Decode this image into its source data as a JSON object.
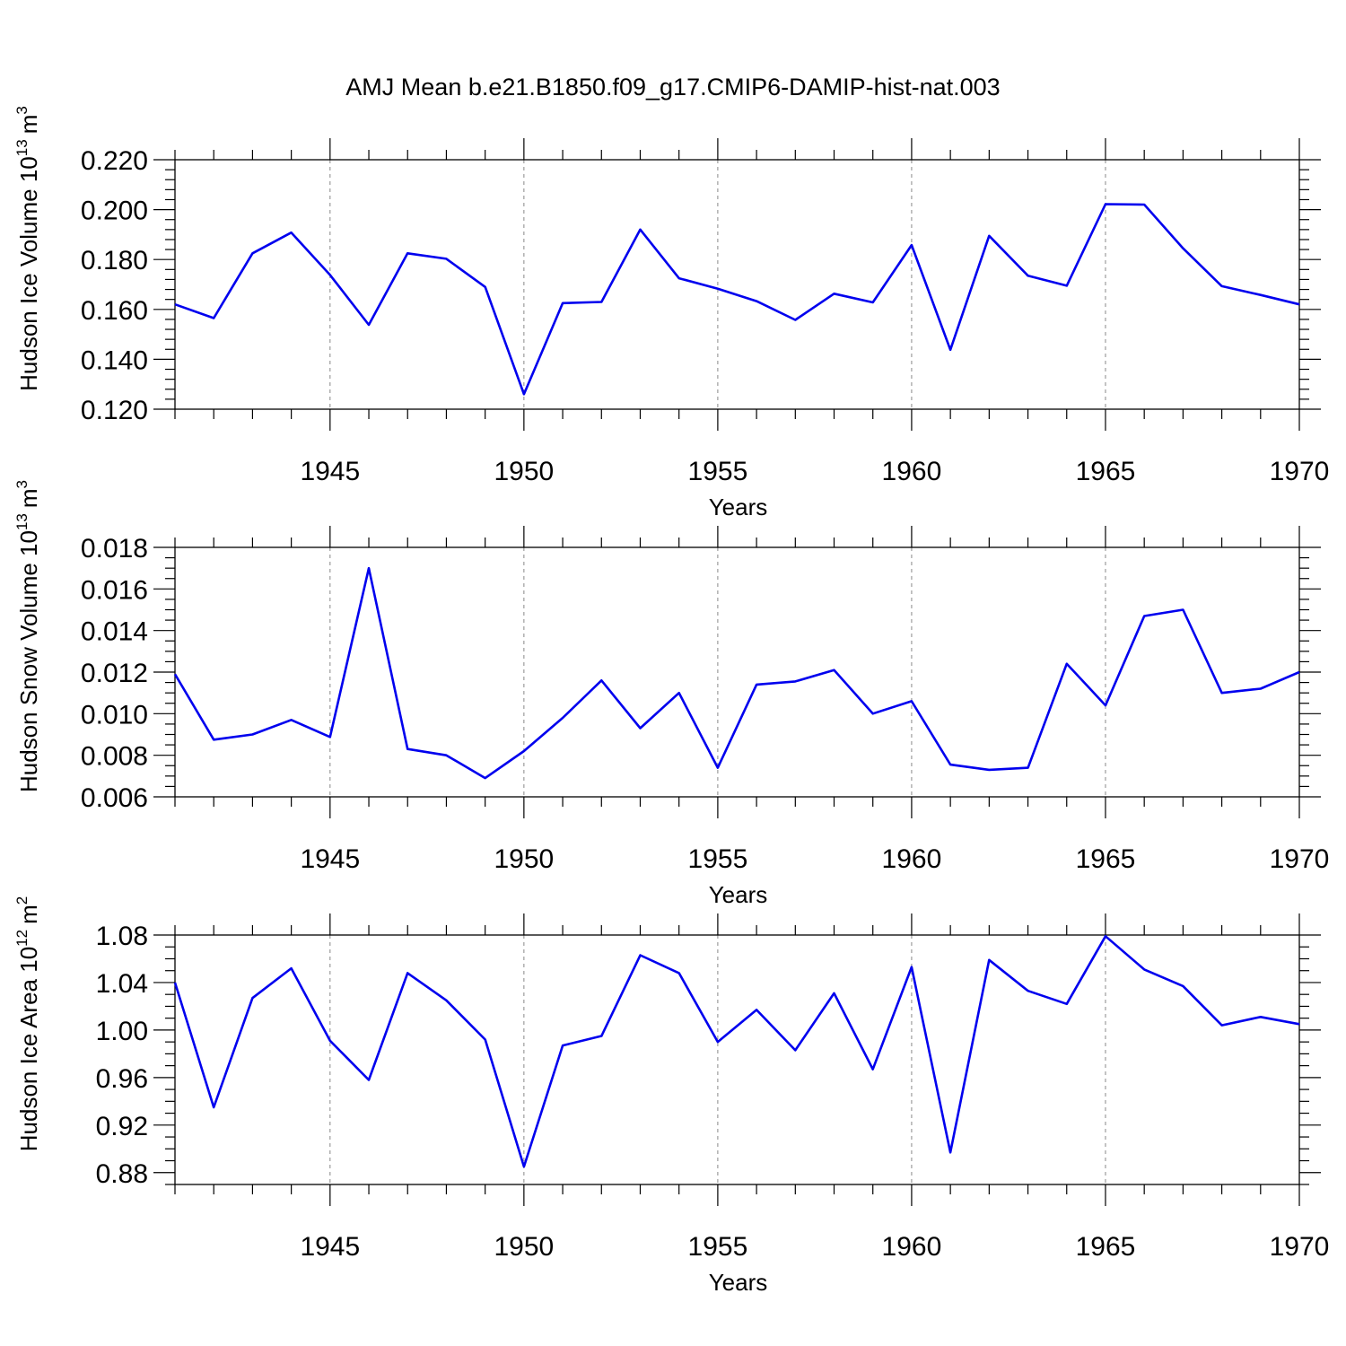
{
  "title": "AMJ Mean b.e21.B1850.f09_g17.CMIP6-DAMIP-hist-nat.003",
  "line_color": "#0000ee",
  "chart_data": [
    {
      "type": "line",
      "ylabel": "Hudson Ice Volume 10",
      "ylabel_sup": "13",
      "ylabel_unit": "m",
      "ylabel_unit_sup": "3",
      "xlabel": "Years",
      "xlim": [
        1941,
        1970
      ],
      "ylim": [
        0.12,
        0.22
      ],
      "yticks": [
        "0.120",
        "0.140",
        "0.160",
        "0.180",
        "0.200",
        "0.220"
      ],
      "xticks": [
        "1945",
        "1950",
        "1955",
        "1960",
        "1965",
        "1970"
      ],
      "grid": "vertical dashed at 5-year ticks",
      "x": [
        1941,
        1942,
        1943,
        1944,
        1945,
        1946,
        1947,
        1948,
        1949,
        1950,
        1951,
        1952,
        1953,
        1954,
        1955,
        1956,
        1957,
        1958,
        1959,
        1960,
        1961,
        1962,
        1963,
        1964,
        1965,
        1966,
        1967,
        1968,
        1969,
        1970
      ],
      "values": [
        0.162,
        0.1565,
        0.1825,
        0.1908,
        0.1738,
        0.1538,
        0.1825,
        0.1803,
        0.169,
        0.126,
        0.1625,
        0.163,
        0.192,
        0.1725,
        0.1683,
        0.1633,
        0.1558,
        0.1663,
        0.1628,
        0.1858,
        0.1438,
        0.1895,
        0.1735,
        0.1695,
        0.2022,
        0.202,
        0.1845,
        0.1693,
        0.1658,
        0.162
      ]
    },
    {
      "type": "line",
      "ylabel": "Hudson Snow Volume 10",
      "ylabel_sup": "13",
      "ylabel_unit": "m",
      "ylabel_unit_sup": "3",
      "xlabel": "Years",
      "xlim": [
        1941,
        1970
      ],
      "ylim": [
        0.006,
        0.018
      ],
      "yticks": [
        "0.006",
        "0.008",
        "0.010",
        "0.012",
        "0.014",
        "0.016",
        "0.018"
      ],
      "xticks": [
        "1945",
        "1950",
        "1955",
        "1960",
        "1965",
        "1970"
      ],
      "grid": "vertical dashed at 5-year ticks",
      "x": [
        1941,
        1942,
        1943,
        1944,
        1945,
        1946,
        1947,
        1948,
        1949,
        1950,
        1951,
        1952,
        1953,
        1954,
        1955,
        1956,
        1957,
        1958,
        1959,
        1960,
        1961,
        1962,
        1963,
        1964,
        1965,
        1966,
        1967,
        1968,
        1969,
        1970
      ],
      "values": [
        0.0119,
        0.00875,
        0.009,
        0.0097,
        0.00888,
        0.017,
        0.0083,
        0.008,
        0.0069,
        0.0082,
        0.0098,
        0.0116,
        0.0093,
        0.011,
        0.0074,
        0.0114,
        0.01155,
        0.0121,
        0.01,
        0.0106,
        0.00755,
        0.0073,
        0.0074,
        0.0124,
        0.0104,
        0.0147,
        0.015,
        0.011,
        0.0112,
        0.012
      ]
    },
    {
      "type": "line",
      "ylabel": "Hudson Ice Area 10",
      "ylabel_sup": "12",
      "ylabel_unit": "m",
      "ylabel_unit_sup": "2",
      "xlabel": "Years",
      "xlim": [
        1941,
        1970
      ],
      "ylim": [
        0.87,
        1.08
      ],
      "yticks": [
        "0.88",
        "0.92",
        "0.96",
        "1.00",
        "1.04",
        "1.08"
      ],
      "xticks": [
        "1945",
        "1950",
        "1955",
        "1960",
        "1965",
        "1970"
      ],
      "grid": "vertical dashed at 5-year ticks",
      "x": [
        1941,
        1942,
        1943,
        1944,
        1945,
        1946,
        1947,
        1948,
        1949,
        1950,
        1951,
        1952,
        1953,
        1954,
        1955,
        1956,
        1957,
        1958,
        1959,
        1960,
        1961,
        1962,
        1963,
        1964,
        1965,
        1966,
        1967,
        1968,
        1969,
        1970
      ],
      "values": [
        1.04,
        0.935,
        1.027,
        1.052,
        0.991,
        0.958,
        1.048,
        1.025,
        0.992,
        0.885,
        0.987,
        0.995,
        1.063,
        1.048,
        0.99,
        1.017,
        0.983,
        1.031,
        0.967,
        1.053,
        0.897,
        1.059,
        1.033,
        1.022,
        1.079,
        1.051,
        1.037,
        1.004,
        1.011,
        1.005
      ]
    }
  ]
}
